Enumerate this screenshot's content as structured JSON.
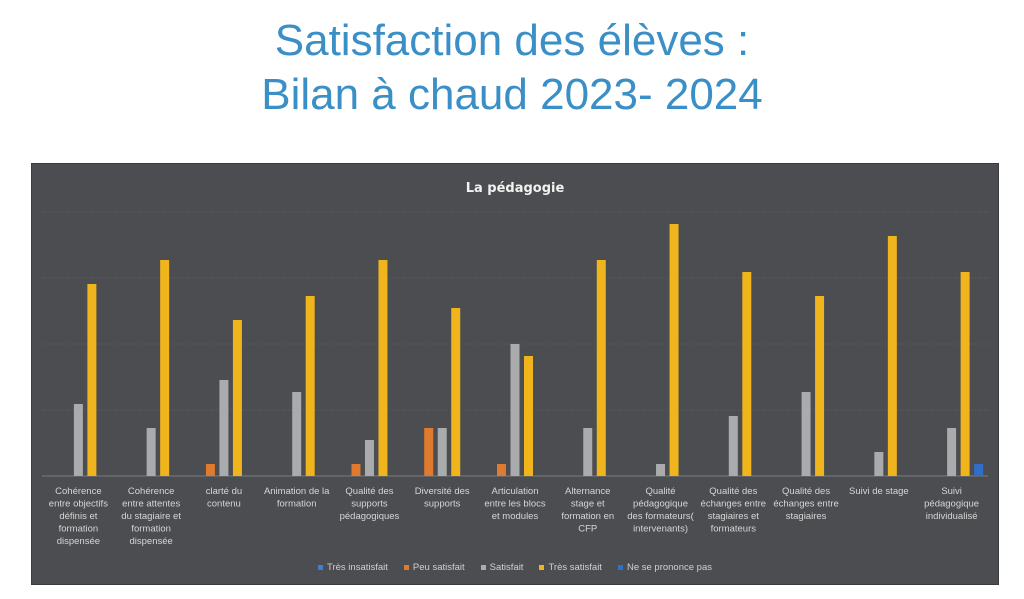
{
  "page": {
    "title_line1": "Satisfaction des élèves :",
    "title_line2": "Bilan à chaud  2023-  2024"
  },
  "colors": {
    "background": "#4b4d50",
    "grid": "#5f6164",
    "series": [
      "#3f7fd0",
      "#e07a2e",
      "#a9abad",
      "#f0b41c",
      "#2f6fc9"
    ]
  },
  "chart_data": {
    "type": "bar",
    "title": "La pédagogie",
    "xlabel": "",
    "ylabel": "",
    "ylim": [
      0,
      22
    ],
    "grid": true,
    "legend_position": "bottom",
    "categories": [
      "Cohérence entre objectifs définis et formation dispensée",
      "Cohérence entre attentes du stagiaire et formation dispensée",
      "clarté du contenu",
      "Animation de la formation",
      "Qualité des supports pédagogiques",
      "Diversité des supports",
      "Articulation entre les blocs et modules",
      "Alternance stage et formation en CFP",
      "Qualité pédagogique des formateurs( intervenants)",
      "Qualité des échanges entre stagiaires et formateurs",
      "Qualité des échanges entre stagiaires",
      "Suivi de stage",
      "Suivi pédagogique individualisé"
    ],
    "category_lines": [
      [
        "Cohérence",
        "entre objectifs",
        "définis et",
        "formation",
        "dispensée"
      ],
      [
        "Cohérence",
        "entre attentes",
        "du stagiaire et",
        "formation",
        "dispensée"
      ],
      [
        "clarté du",
        "contenu"
      ],
      [
        "Animation de la",
        "formation"
      ],
      [
        "Qualité des",
        "supports",
        "pédagogiques"
      ],
      [
        "Diversité des",
        "supports"
      ],
      [
        "Articulation",
        "entre les blocs",
        "et modules"
      ],
      [
        "Alternance",
        "stage et",
        "formation en",
        "CFP"
      ],
      [
        "Qualité",
        "pédagogique",
        "des formateurs(",
        "intervenants)"
      ],
      [
        "Qualité des",
        "échanges entre",
        "stagiaires et",
        "formateurs"
      ],
      [
        "Qualité des",
        "échanges entre",
        "stagiaires"
      ],
      [
        "Suivi de stage"
      ],
      [
        "Suivi",
        "pédagogique",
        "individualisé"
      ]
    ],
    "series": [
      {
        "name": "Très insatisfait",
        "values": [
          0,
          0,
          0,
          0,
          0,
          0,
          0,
          0,
          0,
          0,
          0,
          0,
          0
        ]
      },
      {
        "name": "Peu satisfait",
        "values": [
          0,
          0,
          1,
          0,
          1,
          4,
          1,
          0,
          0,
          0,
          0,
          0,
          0
        ]
      },
      {
        "name": "Satisfait",
        "values": [
          6,
          4,
          8,
          7,
          3,
          4,
          11,
          4,
          1,
          5,
          7,
          2,
          4
        ]
      },
      {
        "name": "Très satisfait",
        "values": [
          16,
          18,
          13,
          15,
          18,
          14,
          10,
          18,
          21,
          17,
          15,
          20,
          17
        ]
      },
      {
        "name": "Ne se prononce pas",
        "values": [
          0,
          0,
          0,
          0,
          0,
          0,
          0,
          0,
          0,
          0,
          0,
          0,
          1
        ]
      }
    ]
  }
}
